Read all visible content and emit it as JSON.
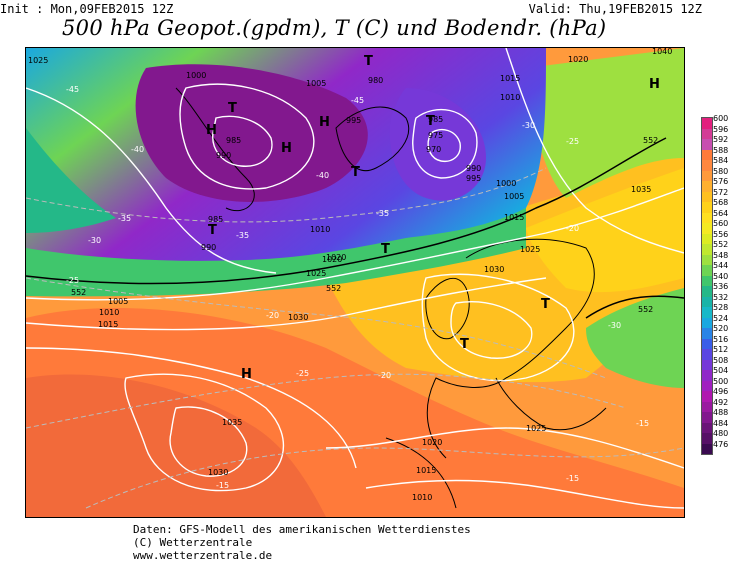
{
  "header": {
    "init": "Init : Mon,09FEB2015 12Z",
    "valid": "Valid: Thu,19FEB2015 12Z",
    "title": "500 hPa Geopot.(gpdm), T (C) und Bodendr. (hPa)"
  },
  "legend": {
    "unit_note": "gpdm",
    "levels": [
      "600",
      "596",
      "592",
      "588",
      "584",
      "580",
      "576",
      "572",
      "568",
      "564",
      "560",
      "556",
      "552",
      "548",
      "544",
      "540",
      "536",
      "532",
      "528",
      "524",
      "520",
      "516",
      "512",
      "508",
      "504",
      "500",
      "496",
      "492",
      "488",
      "484",
      "480",
      "476"
    ],
    "colors": [
      "#e2207e",
      "#d33c96",
      "#c74fb0",
      "#ff7a3a",
      "#ff8840",
      "#ff9a3c",
      "#ffb030",
      "#ffc020",
      "#ffd21a",
      "#ffe020",
      "#f4ea22",
      "#dcec22",
      "#c0e830",
      "#9ee040",
      "#6ed454",
      "#40c66c",
      "#24b888",
      "#1ab4a8",
      "#18b8c8",
      "#1aa8e0",
      "#2a84e6",
      "#3a5ee8",
      "#5a46e2",
      "#7638d8",
      "#9028c8",
      "#a020c0",
      "#b018b0",
      "#9a1aa0",
      "#82188e",
      "#6a1478",
      "#561066",
      "#3a0a50"
    ]
  },
  "map": {
    "pressure_labels": [
      "1025",
      "1000",
      "1005",
      "985",
      "995",
      "990",
      "980",
      "1015",
      "1010",
      "1020",
      "1040",
      "985",
      "975",
      "970",
      "990",
      "1000",
      "995",
      "1005",
      "985",
      "990",
      "1010",
      "1015",
      "1020",
      "1025",
      "1030",
      "1035",
      "1005",
      "1010",
      "1015",
      "1020",
      "1025",
      "1030",
      "1035",
      "1030",
      "1025",
      "1020",
      "1015",
      "1010"
    ],
    "temp_labels": [
      "-45",
      "-40",
      "-35",
      "-30",
      "-25",
      "-20",
      "-15",
      "-40",
      "-35",
      "-30",
      "-25",
      "-20",
      "-15",
      "-45",
      "-35",
      "-30",
      "-25",
      "-20",
      "-15"
    ],
    "geopot_labels": [
      "552",
      "552",
      "552",
      "552"
    ],
    "pressure_centres": [
      "H",
      "T",
      "H",
      "H",
      "T",
      "T",
      "T",
      "T",
      "T",
      "H",
      "H",
      "T",
      "T"
    ]
  },
  "credits": {
    "line1": "Daten: GFS-Modell des amerikanischen Wetterdienstes",
    "line2": "(C) Wetterzentrale",
    "line3": "www.wetterzentrale.de"
  }
}
